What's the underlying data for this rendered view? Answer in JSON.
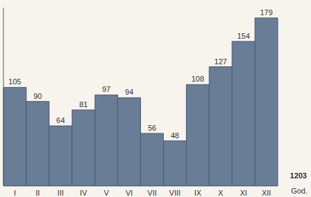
{
  "chart_data": {
    "type": "bar",
    "categories": [
      "I",
      "II",
      "III",
      "IV",
      "V",
      "VI",
      "VII",
      "VIII",
      "IX",
      "X",
      "XI",
      "XII"
    ],
    "values": [
      105,
      90,
      64,
      81,
      97,
      94,
      56,
      48,
      108,
      127,
      154,
      179
    ],
    "color": "#6a7d97",
    "ylim": [
      0,
      190
    ],
    "yticks": [],
    "xlabel": "God.",
    "annotations": [
      "1203"
    ],
    "data_labels": true,
    "tick_labels": "x",
    "grid": false
  }
}
